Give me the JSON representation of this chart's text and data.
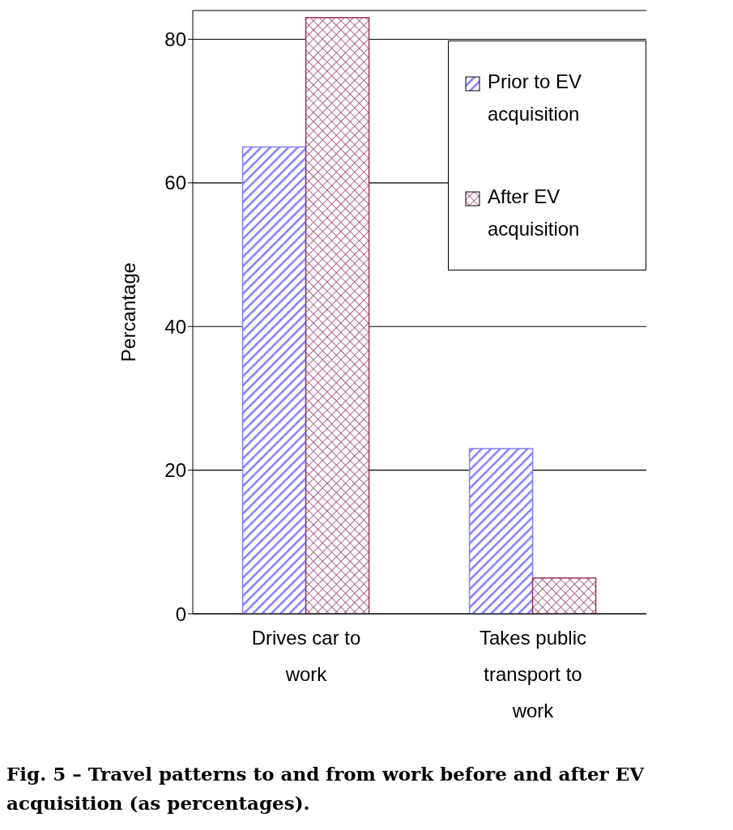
{
  "chart_data": {
    "type": "bar",
    "ylabel": "Percantage",
    "categories": [
      "Drives car to work",
      "Takes public transport to work"
    ],
    "series": [
      {
        "name": "Prior to EV acquisition",
        "color": "#8080ff",
        "values": [
          65,
          23
        ]
      },
      {
        "name": "After EV acquisition",
        "color": "#993366",
        "values": [
          83,
          5
        ]
      }
    ],
    "ylim": [
      0,
      84
    ],
    "yticks": [
      0,
      20,
      40,
      60,
      80
    ],
    "grid": "y",
    "legend": "top right",
    "annotations": [
      "Fig. 5 – Travel patterns to and from work before and after EV acquisition (as percentages)."
    ]
  }
}
